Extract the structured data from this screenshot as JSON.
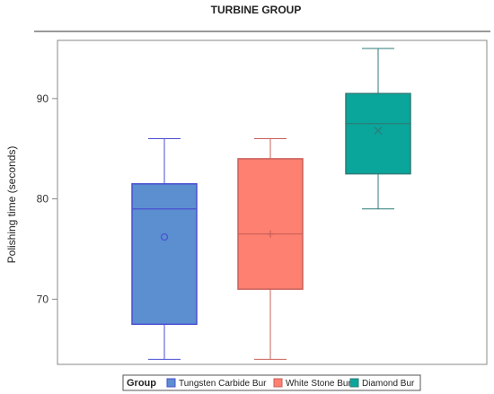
{
  "chart_data": {
    "type": "box",
    "title": "TURBINE GROUP",
    "xlabel": "",
    "ylabel": "Polishing time (seconds)",
    "ylim": [
      63.5,
      95.8
    ],
    "yticks": [
      70,
      80,
      90
    ],
    "grid": false,
    "legend": {
      "title": "Group",
      "position": "bottom",
      "entries": [
        "Tungsten Carbide Bur",
        "White Stone Bur",
        "Diamond Bur"
      ]
    },
    "series": [
      {
        "name": "Tungsten Carbide Bur",
        "color": "#5b8fd0",
        "stroke": "#4a4fd0",
        "whisker_low": 64,
        "q1": 67.5,
        "median": 79,
        "q3": 81.5,
        "whisker_high": 86,
        "mean": 76.2,
        "mean_marker": "circle"
      },
      {
        "name": "White Stone Bur",
        "color": "#fd8070",
        "stroke": "#c9605a",
        "whisker_low": 64,
        "q1": 71,
        "median": 76.5,
        "q3": 84,
        "whisker_high": 86,
        "mean": 76.5,
        "mean_marker": "plus"
      },
      {
        "name": "Diamond Bur",
        "color": "#0aa59b",
        "stroke": "#2d7d78",
        "whisker_low": 79,
        "q1": 82.5,
        "median": 87.5,
        "q3": 90.5,
        "whisker_high": 95,
        "mean": 86.8,
        "mean_marker": "x"
      }
    ]
  }
}
